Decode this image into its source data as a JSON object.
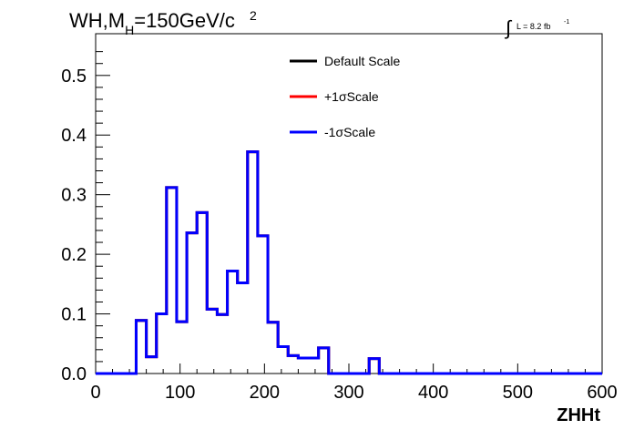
{
  "title": {
    "main": "WH,M",
    "subscript": "H",
    "rest": "=150GeV/c",
    "superscript": "2"
  },
  "lumi": {
    "integral_symbol": "∫",
    "text": "L = 8.2 fb",
    "superscript": "-1"
  },
  "colors": {
    "default": "#000000",
    "plus": "#ff0000",
    "minus": "#0000ff"
  },
  "chart_data": {
    "type": "line",
    "xlabel": "ZHHt",
    "ylabel": "",
    "xlim": [
      0,
      600
    ],
    "ylim": [
      0,
      0.57
    ],
    "x_ticks": [
      0,
      100,
      200,
      300,
      400,
      500,
      600
    ],
    "y_ticks": [
      0.0,
      0.1,
      0.2,
      0.3,
      0.4,
      0.5
    ],
    "y_tick_labels": [
      "0.0",
      "0.1",
      "0.2",
      "0.3",
      "0.4",
      "0.5"
    ],
    "grid": false,
    "legend_placement": "top-center",
    "bin_edges": [
      0,
      12,
      24,
      36,
      48,
      60,
      72,
      84,
      96,
      108,
      120,
      132,
      144,
      156,
      168,
      180,
      192,
      204,
      216,
      228,
      240,
      252,
      264,
      276,
      288,
      300,
      312,
      324,
      336,
      348,
      360,
      372,
      384,
      396,
      408,
      420,
      432,
      444,
      456,
      468,
      480,
      492,
      504,
      516,
      528,
      540,
      552,
      564,
      576,
      588,
      600
    ],
    "series": [
      {
        "name": "Default Scale",
        "color_key": "default",
        "values": [
          0,
          0,
          0,
          0,
          0.089,
          0.028,
          0.1,
          0.312,
          0.087,
          0.236,
          0.27,
          0.108,
          0.099,
          0.172,
          0.152,
          0.372,
          0.231,
          0.086,
          0.045,
          0.03,
          0.026,
          0.026,
          0.043,
          0,
          0,
          0,
          0,
          0.025,
          0,
          0,
          0,
          0,
          0,
          0,
          0,
          0,
          0,
          0,
          0,
          0,
          0,
          0,
          0,
          0,
          0,
          0,
          0,
          0,
          0,
          0
        ]
      },
      {
        "name": "+1σScale",
        "color_key": "plus",
        "values": [
          0,
          0,
          0,
          0,
          0.089,
          0.028,
          0.1,
          0.312,
          0.087,
          0.236,
          0.27,
          0.108,
          0.099,
          0.172,
          0.152,
          0.372,
          0.231,
          0.086,
          0.045,
          0.03,
          0.026,
          0.026,
          0.043,
          0,
          0,
          0,
          0,
          0.025,
          0,
          0,
          0,
          0,
          0,
          0,
          0,
          0,
          0,
          0,
          0,
          0,
          0,
          0,
          0,
          0,
          0,
          0,
          0,
          0,
          0,
          0
        ]
      },
      {
        "name": "-1σScale",
        "color_key": "minus",
        "values": [
          0,
          0,
          0,
          0,
          0.089,
          0.028,
          0.1,
          0.312,
          0.087,
          0.236,
          0.27,
          0.108,
          0.099,
          0.172,
          0.152,
          0.372,
          0.231,
          0.086,
          0.045,
          0.03,
          0.026,
          0.026,
          0.043,
          0,
          0,
          0,
          0,
          0.025,
          0,
          0,
          0,
          0,
          0,
          0,
          0,
          0,
          0,
          0,
          0,
          0,
          0,
          0,
          0,
          0,
          0,
          0,
          0,
          0,
          0,
          0
        ]
      }
    ]
  }
}
